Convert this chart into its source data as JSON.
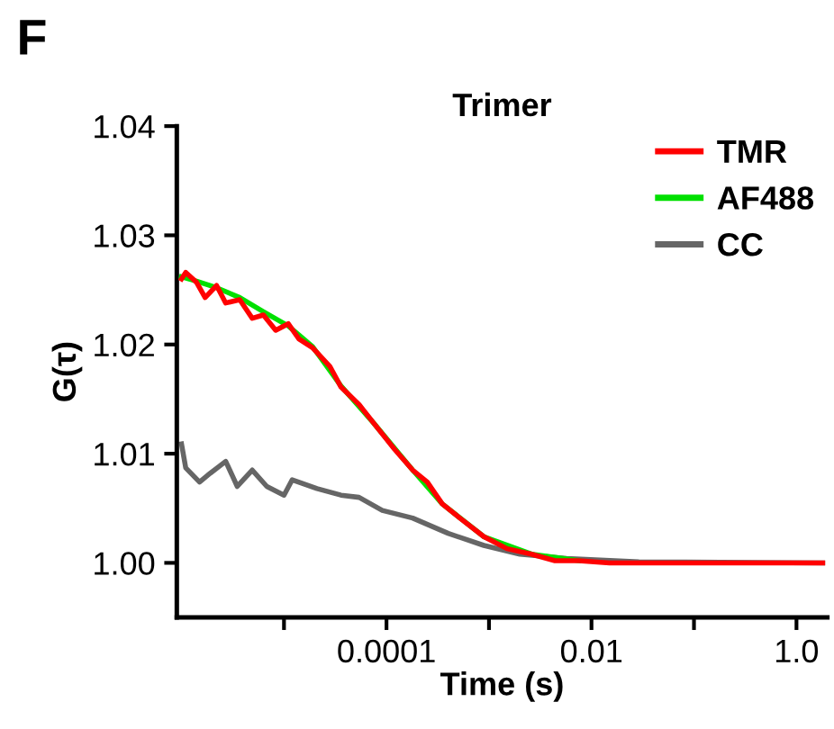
{
  "chart_data": {
    "type": "line",
    "title": "Trimer",
    "xlabel": "Time (s)",
    "ylabel": "G(τ)",
    "annotations": [
      "F"
    ],
    "log": "x",
    "xlim": [
      9e-07,
      2
    ],
    "ylim": [
      0.995,
      1.04
    ],
    "xticks": [
      {
        "value": 1e-05,
        "label": null
      },
      {
        "value": 0.0001,
        "label": "0.0001"
      },
      {
        "value": 0.001,
        "label": null
      },
      {
        "value": 0.01,
        "label": "0.01"
      },
      {
        "value": 0.1,
        "label": null
      },
      {
        "value": 1,
        "label": "1.0"
      }
    ],
    "yticks": [
      {
        "value": 1.0,
        "label": "1.00"
      },
      {
        "value": 1.01,
        "label": "1.01"
      },
      {
        "value": 1.02,
        "label": "1.02"
      },
      {
        "value": 1.03,
        "label": "1.03"
      },
      {
        "value": 1.04,
        "label": "1.04"
      }
    ],
    "grid": false,
    "legend": "top right",
    "marker": "none",
    "line_style": "solid",
    "series": [
      {
        "name": "CC",
        "color": "#666666",
        "x": [
          1e-06,
          1.1e-06,
          1.5e-06,
          1.9e-06,
          2.7e-06,
          3.5e-06,
          4.9e-06,
          6.8e-06,
          1e-05,
          1.2e-05,
          2.1e-05,
          3.6e-05,
          5.4e-05,
          9.1e-05,
          0.00018,
          0.0004,
          0.00089,
          0.002,
          0.0057,
          0.029,
          1.8
        ],
        "values": [
          1.0109,
          1.0087,
          1.0074,
          1.0082,
          1.0093,
          1.007,
          1.0085,
          1.007,
          1.0062,
          1.0076,
          1.0068,
          1.0062,
          1.006,
          1.0048,
          1.0041,
          1.0027,
          1.0016,
          1.0008,
          1.0004,
          1.0001,
          1.0
        ]
      },
      {
        "name": "AF488",
        "color": "#00e000",
        "x": [
          1e-06,
          1.4e-06,
          2.2e-06,
          3.7e-06,
          6.3e-06,
          1.1e-05,
          1.9e-05,
          3.6e-05,
          7.5e-05,
          0.00018,
          0.00035,
          0.00089,
          0.0026,
          0.0075
        ],
        "values": [
          1.0262,
          1.0258,
          1.0252,
          1.0243,
          1.023,
          1.0217,
          1.0198,
          1.0162,
          1.0128,
          1.0085,
          1.0054,
          1.0024,
          1.0008,
          1.0002
        ]
      },
      {
        "name": "TMR",
        "color": "#ff0000",
        "x": [
          1e-06,
          1.1e-06,
          1.4e-06,
          1.7e-06,
          2.2e-06,
          2.7e-06,
          3.7e-06,
          4.9e-06,
          6.3e-06,
          8.3e-06,
          1.1e-05,
          1.4e-05,
          1.9e-05,
          2.8e-05,
          3.6e-05,
          5.4e-05,
          7.5e-05,
          0.00012,
          0.00018,
          0.00025,
          0.00035,
          0.00052,
          0.00089,
          0.0015,
          0.0026,
          0.0044,
          0.0075,
          0.015,
          0.029,
          0.11,
          1.8
        ],
        "values": [
          1.026,
          1.0266,
          1.0257,
          1.0243,
          1.0254,
          1.0238,
          1.0241,
          1.0224,
          1.0227,
          1.0213,
          1.0219,
          1.0205,
          1.0197,
          1.018,
          1.0161,
          1.0145,
          1.0128,
          1.0104,
          1.0085,
          1.0074,
          1.0054,
          1.0041,
          1.0024,
          1.0013,
          1.0008,
          1.0002,
          1.0002,
          1.0,
          1.0,
          1.0,
          1.0
        ]
      }
    ]
  }
}
